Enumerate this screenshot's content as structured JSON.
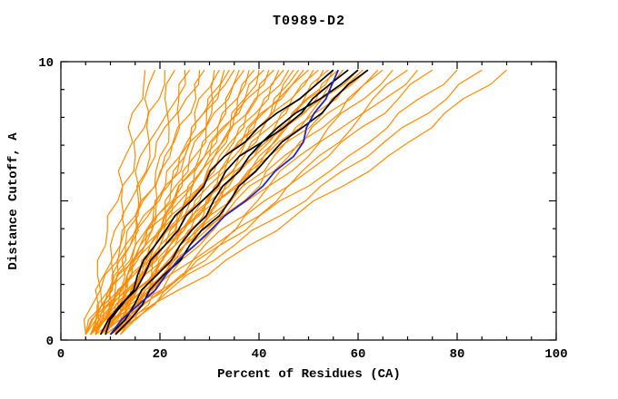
{
  "window": {
    "title": "T0989-D2"
  },
  "chart_data": {
    "type": "line",
    "title": "T0989-D2",
    "xlabel": "Percent of Residues (CA)",
    "ylabel": "Distance Cutoff, A",
    "xlim": [
      0,
      100
    ],
    "ylim": [
      0,
      10
    ],
    "x_major_ticks": [
      0,
      20,
      40,
      60,
      80,
      100
    ],
    "x_minor_step": 5,
    "y_major_ticks": [
      0,
      5,
      10
    ],
    "y_labeled_ticks": [
      0,
      10
    ],
    "y_minor_step": 1,
    "grid": false,
    "legend": null,
    "series_colors": {
      "orange": "#ff8c00",
      "black": "#000000",
      "blue": "#2222cc"
    },
    "sample_y": [
      0.2,
      3.4,
      6.6,
      9.7
    ],
    "orange_lines_x": [
      [
        5,
        9,
        13,
        17
      ],
      [
        6,
        10,
        15,
        19
      ],
      [
        7,
        12,
        16,
        21
      ],
      [
        8,
        13,
        18,
        23
      ],
      [
        9,
        14,
        20,
        25
      ],
      [
        5,
        12,
        19,
        26
      ],
      [
        6,
        13,
        21,
        28
      ],
      [
        7,
        15,
        22,
        29
      ],
      [
        8,
        16,
        24,
        31
      ],
      [
        9,
        17,
        25,
        32
      ],
      [
        10,
        18,
        26,
        33
      ],
      [
        5,
        14,
        24,
        34
      ],
      [
        6,
        15,
        25,
        35
      ],
      [
        7,
        17,
        27,
        36
      ],
      [
        8,
        18,
        28,
        37
      ],
      [
        9,
        19,
        29,
        38
      ],
      [
        10,
        20,
        30,
        39
      ],
      [
        11,
        21,
        31,
        40
      ],
      [
        5,
        16,
        29,
        41
      ],
      [
        6,
        17,
        30,
        42
      ],
      [
        7,
        19,
        31,
        43
      ],
      [
        8,
        20,
        32,
        44
      ],
      [
        9,
        21,
        33,
        45
      ],
      [
        10,
        22,
        34,
        46
      ],
      [
        11,
        23,
        35,
        47
      ],
      [
        12,
        24,
        36,
        48
      ],
      [
        5,
        18,
        33,
        49
      ],
      [
        6,
        19,
        34,
        50
      ],
      [
        7,
        21,
        36,
        51
      ],
      [
        8,
        22,
        37,
        52
      ],
      [
        9,
        23,
        38,
        53
      ],
      [
        10,
        24,
        39,
        54
      ],
      [
        11,
        25,
        40,
        55
      ],
      [
        12,
        26,
        41,
        56
      ],
      [
        6,
        21,
        38,
        57
      ],
      [
        7,
        22,
        39,
        58
      ],
      [
        8,
        24,
        41,
        60
      ],
      [
        9,
        25,
        42,
        61
      ],
      [
        10,
        26,
        43,
        62
      ],
      [
        11,
        28,
        45,
        64
      ],
      [
        7,
        25,
        46,
        65
      ],
      [
        8,
        27,
        48,
        67
      ],
      [
        9,
        29,
        50,
        70
      ],
      [
        10,
        31,
        52,
        72
      ],
      [
        11,
        32,
        54,
        75
      ],
      [
        8,
        32,
        58,
        80
      ],
      [
        9,
        35,
        62,
        85
      ],
      [
        10,
        38,
        66,
        90
      ]
    ],
    "black_lines_x": [
      [
        9,
        19,
        33,
        55
      ],
      [
        10,
        24,
        38,
        58
      ],
      [
        8,
        21,
        36,
        60
      ],
      [
        11,
        26,
        42,
        62
      ]
    ],
    "blue_lines_x": [
      [
        10,
        27,
        47,
        56
      ]
    ]
  }
}
